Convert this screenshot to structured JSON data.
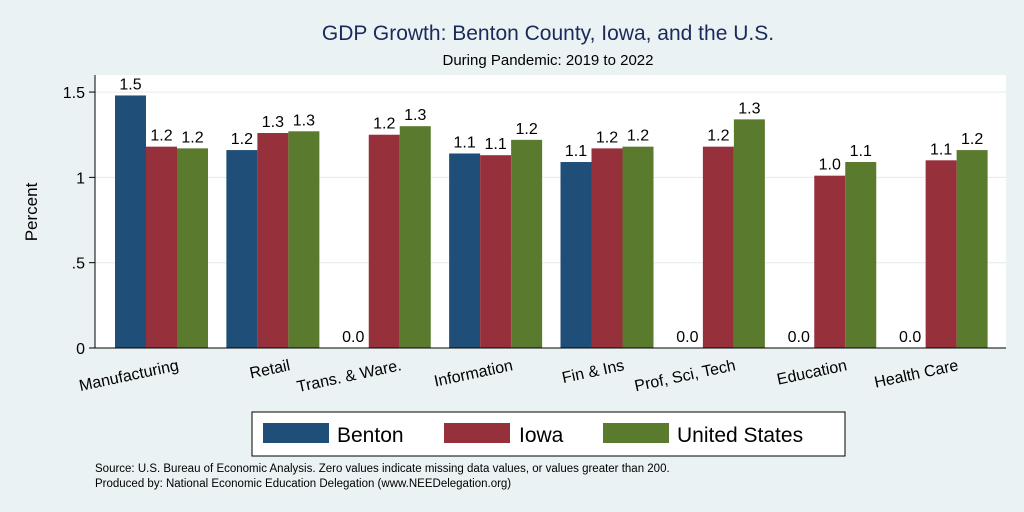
{
  "chart_data": {
    "type": "bar",
    "title": "GDP Growth: Benton County, Iowa, and the U.S.",
    "subtitle": "During Pandemic: 2019 to 2022",
    "ylabel": "Percent",
    "xlabel": "",
    "ylim": [
      0,
      1.6
    ],
    "yticks": [
      0,
      0.5,
      1,
      1.5
    ],
    "ytick_labels": [
      "0",
      ".5",
      "1",
      "1.5"
    ],
    "categories": [
      "Manufacturing",
      "Retail",
      "Trans. & Ware.",
      "Information",
      "Fin & Ins",
      "Prof, Sci, Tech",
      "Education",
      "Health Care"
    ],
    "series": [
      {
        "name": "Benton",
        "color": "#1f4e79",
        "values": [
          1.48,
          1.16,
          0.0,
          1.14,
          1.09,
          0.0,
          0.0,
          0.0
        ],
        "labels": [
          "1.5",
          "1.2",
          "0.0",
          "1.1",
          "1.1",
          "0.0",
          "0.0",
          "0.0"
        ]
      },
      {
        "name": "Iowa",
        "color": "#96313c",
        "values": [
          1.18,
          1.26,
          1.25,
          1.13,
          1.17,
          1.18,
          1.01,
          1.1
        ],
        "labels": [
          "1.2",
          "1.3",
          "1.2",
          "1.1",
          "1.2",
          "1.2",
          "1.0",
          "1.1"
        ]
      },
      {
        "name": "United States",
        "color": "#5a7a2e",
        "values": [
          1.17,
          1.27,
          1.3,
          1.22,
          1.18,
          1.34,
          1.09,
          1.16
        ],
        "labels": [
          "1.2",
          "1.3",
          "1.3",
          "1.2",
          "1.2",
          "1.3",
          "1.1",
          "1.2"
        ]
      }
    ],
    "grid": true,
    "legend_position": "bottom"
  },
  "notes": {
    "source": "Source: U.S. Bureau of Economic Analysis. Zero values indicate missing data values, or values greater than 200.",
    "produced": "Produced by: National Economic Education Delegation (www.NEEDelegation.org)"
  }
}
